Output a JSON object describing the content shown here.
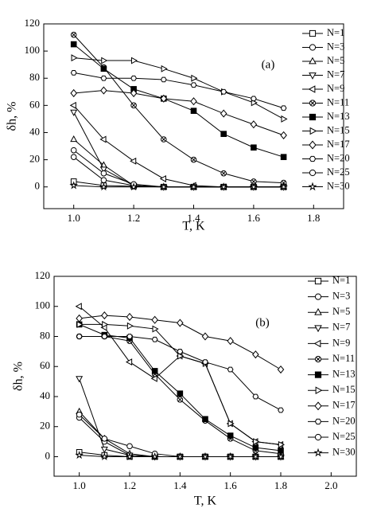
{
  "chart_data": [
    {
      "type": "line",
      "annotation": "(a)",
      "xlabel": "T, K",
      "ylabel": "δh, %",
      "xlim": [
        0.9,
        1.9
      ],
      "ylim": [
        -16,
        120
      ],
      "xticks": [
        {
          "value": 1,
          "label": "1.0"
        },
        1.2,
        1.4,
        1.6,
        1.8
      ],
      "yticks": [
        0,
        20,
        40,
        60,
        80,
        100,
        120
      ],
      "x": [
        1.0,
        1.1,
        1.2,
        1.3,
        1.4,
        1.5,
        1.6,
        1.7
      ],
      "legend": "upper right",
      "series": [
        {
          "name": "N=1",
          "color": "#000000",
          "marker": "square",
          "values": [
            4,
            1,
            0.5,
            0,
            0,
            0,
            0,
            0
          ]
        },
        {
          "name": "N=3",
          "color": "#000000",
          "marker": "circle",
          "values": [
            22,
            5,
            1,
            0,
            0,
            0,
            0,
            0
          ]
        },
        {
          "name": "N=5",
          "color": "#000000",
          "marker": "triangle-up",
          "values": [
            35,
            16,
            1,
            0,
            0,
            0,
            0,
            0
          ]
        },
        {
          "name": "N=7",
          "color": "#000000",
          "marker": "triangle-down",
          "values": [
            55,
            13,
            1,
            0,
            0,
            0,
            0,
            0
          ]
        },
        {
          "name": "N=9",
          "color": "#000000",
          "marker": "triangle-left",
          "values": [
            60,
            35,
            19,
            6,
            1,
            0,
            0,
            0
          ]
        },
        {
          "name": "N=11",
          "color": "#000000",
          "marker": "circle-x",
          "values": [
            112,
            88,
            60,
            35,
            20,
            10,
            4,
            3
          ]
        },
        {
          "name": "N=13",
          "color": "#000000",
          "marker": "square-filled",
          "values": [
            105,
            87,
            72,
            65,
            56,
            39,
            29,
            22
          ]
        },
        {
          "name": "N=15",
          "color": "#000000",
          "marker": "triangle-right",
          "values": [
            95,
            93,
            93,
            87,
            80,
            70,
            62,
            50
          ]
        },
        {
          "name": "N=17",
          "color": "#000000",
          "marker": "diamond",
          "values": [
            69,
            71,
            69,
            65,
            63,
            54,
            46,
            38
          ]
        },
        {
          "name": "N=20",
          "color": "#000000",
          "marker": "hexagon",
          "values": [
            84,
            80,
            80,
            79,
            75,
            70,
            65,
            58
          ]
        },
        {
          "name": "N=25",
          "color": "#000000",
          "marker": "circle",
          "values": [
            27,
            10,
            2,
            0,
            0,
            0,
            0,
            0
          ]
        },
        {
          "name": "N=30",
          "color": "#000000",
          "marker": "star",
          "values": [
            1,
            0,
            0,
            0,
            0,
            0,
            0,
            0
          ]
        }
      ]
    },
    {
      "type": "line",
      "annotation": "(b)",
      "xlabel": "T, K",
      "ylabel": "δh, %",
      "xlim": [
        0.9,
        2.1
      ],
      "ylim": [
        -13,
        120
      ],
      "xticks": [
        {
          "value": 1,
          "label": "1.0"
        },
        1.2,
        1.4,
        1.6,
        1.8,
        {
          "value": 2,
          "label": "2.0"
        }
      ],
      "yticks": [
        0,
        20,
        40,
        60,
        80,
        100,
        120
      ],
      "x": [
        1.0,
        1.1,
        1.2,
        1.3,
        1.4,
        1.5,
        1.6,
        1.7,
        1.8
      ],
      "legend": "upper right",
      "series": [
        {
          "name": "N=1",
          "color": "#000000",
          "marker": "square",
          "values": [
            3,
            1,
            0,
            0,
            0,
            0,
            0,
            0,
            0
          ]
        },
        {
          "name": "N=3",
          "color": "#000000",
          "marker": "circle",
          "values": [
            26,
            10,
            1,
            0,
            0,
            0,
            0,
            0,
            0
          ]
        },
        {
          "name": "N=5",
          "color": "#000000",
          "marker": "triangle-up",
          "values": [
            30,
            12,
            2,
            0,
            0,
            0,
            0,
            0,
            0
          ]
        },
        {
          "name": "N=7",
          "color": "#000000",
          "marker": "triangle-down",
          "values": [
            52,
            5,
            1,
            0,
            0,
            0,
            0,
            0,
            0
          ]
        },
        {
          "name": "N=9",
          "color": "#000000",
          "marker": "triangle-left",
          "values": [
            100,
            86,
            63,
            52,
            67,
            62,
            22,
            10,
            8
          ]
        },
        {
          "name": "N=11",
          "color": "#000000",
          "marker": "circle-x",
          "values": [
            80,
            80,
            77,
            55,
            38,
            24,
            12,
            4,
            2
          ]
        },
        {
          "name": "N=13",
          "color": "#000000",
          "marker": "square-filled",
          "values": [
            88,
            81,
            79,
            57,
            42,
            25,
            14,
            6,
            4
          ]
        },
        {
          "name": "N=15",
          "color": "#000000",
          "marker": "triangle-right",
          "values": [
            88,
            88,
            87,
            85,
            67,
            62,
            22,
            10,
            8
          ]
        },
        {
          "name": "N=17",
          "color": "#000000",
          "marker": "diamond",
          "values": [
            92,
            94,
            93,
            91,
            89,
            80,
            77,
            68,
            58
          ]
        },
        {
          "name": "N=20",
          "color": "#000000",
          "marker": "hexagon",
          "values": [
            80,
            80,
            80,
            78,
            70,
            63,
            58,
            40,
            31
          ]
        },
        {
          "name": "N=25",
          "color": "#000000",
          "marker": "circle",
          "values": [
            28,
            12,
            7,
            2,
            0,
            0,
            0,
            0,
            0
          ]
        },
        {
          "name": "N=30",
          "color": "#000000",
          "marker": "star",
          "values": [
            1,
            0,
            0,
            0,
            0,
            0,
            0,
            0,
            0
          ]
        }
      ]
    }
  ]
}
